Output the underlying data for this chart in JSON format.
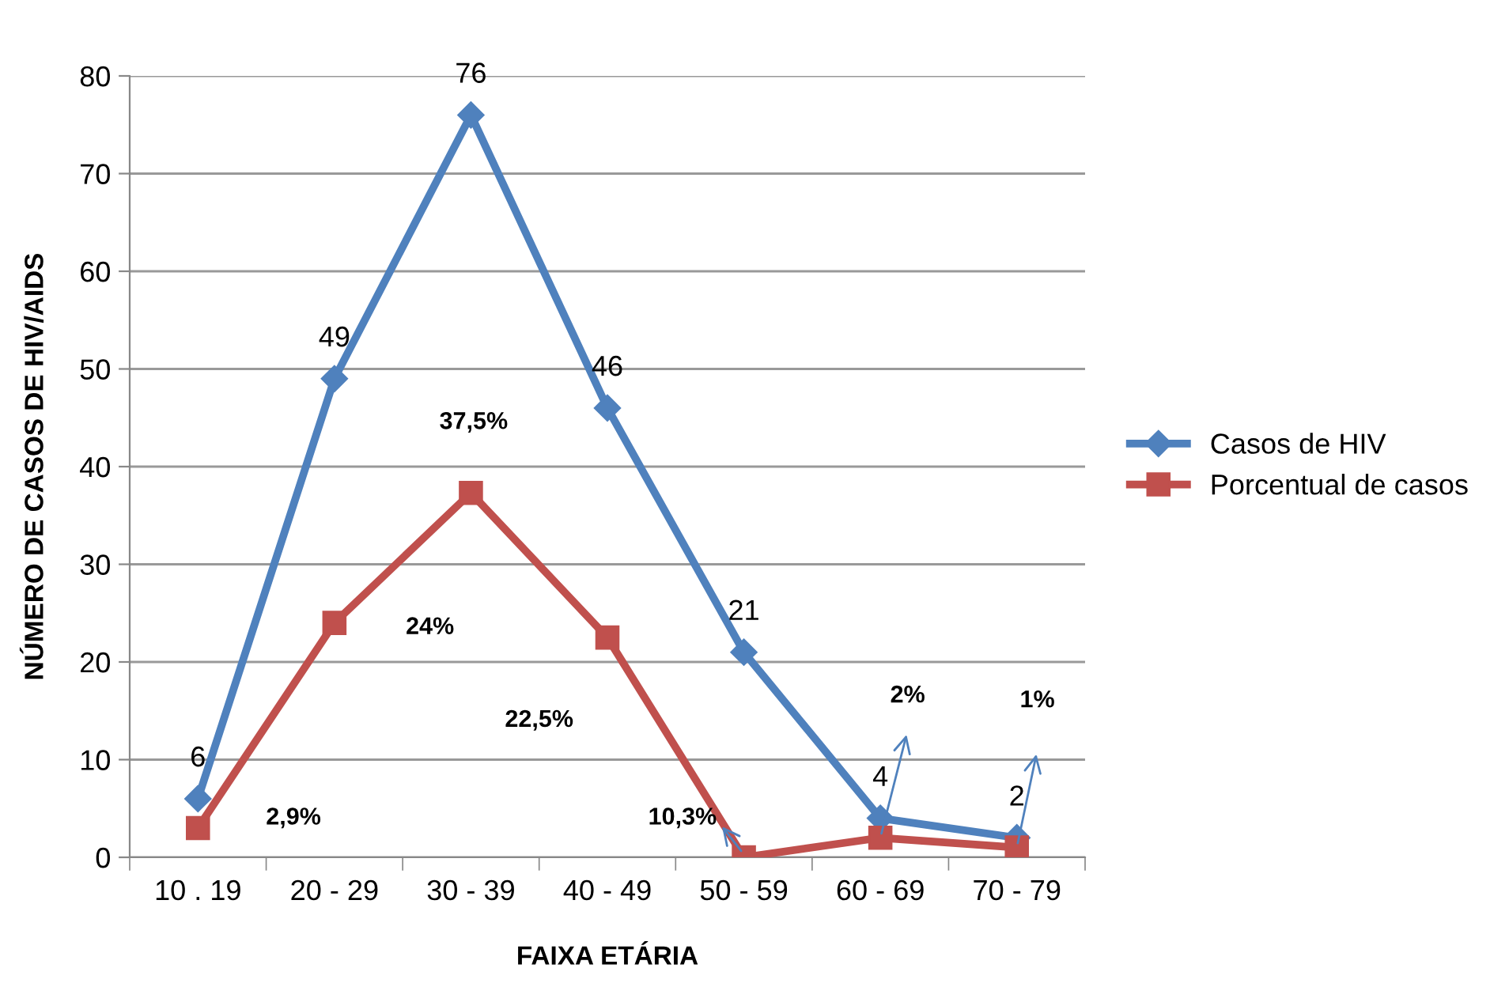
{
  "chart_data": {
    "type": "line",
    "xlabel": "FAIXA ETÁRIA",
    "ylabel": "NÚMERO DE CASOS DE HIV/AIDS",
    "categories": [
      "10 . 19",
      "20 - 29",
      "30 - 39",
      "40 - 49",
      "50 - 59",
      "60 - 69",
      "70 - 79"
    ],
    "series": [
      {
        "name": "Casos de HIV",
        "color": "#4f81bd",
        "marker": "diamond",
        "values": [
          6,
          49,
          76,
          46,
          21,
          4,
          2
        ],
        "value_labels": [
          "6",
          "49",
          "76",
          "46",
          "21",
          "4",
          "2"
        ]
      },
      {
        "name": "Porcentual de casos",
        "color": "#c0504d",
        "marker": "square",
        "values": [
          3,
          24,
          37.3,
          22.5,
          0,
          2,
          1
        ]
      }
    ],
    "annotations": [
      "2,9%",
      "24%",
      "37,5%",
      "22,5%",
      "10,3%",
      "2%",
      "1%"
    ],
    "ylim": [
      0,
      80
    ],
    "yticks": [
      0,
      10,
      20,
      30,
      40,
      50,
      60,
      70,
      80
    ],
    "grid": "y",
    "legend": "right",
    "line_style": "solid"
  }
}
